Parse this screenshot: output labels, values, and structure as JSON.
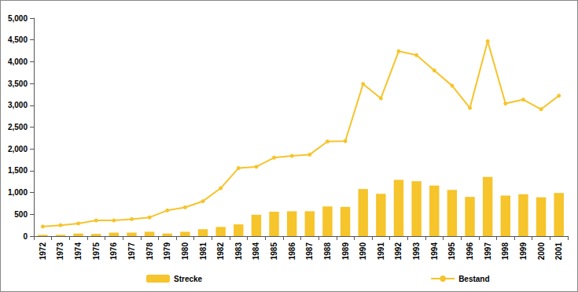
{
  "chart_data": {
    "type": "bar",
    "categories": [
      "1972",
      "1973",
      "1974",
      "1975",
      "1976",
      "1977",
      "1978",
      "1979",
      "1980",
      "1981",
      "1982",
      "1983",
      "1984",
      "1985",
      "1986",
      "1987",
      "1988",
      "1989",
      "1990",
      "1991",
      "1992",
      "1993",
      "1994",
      "1995",
      "1996",
      "1997",
      "1998",
      "1999",
      "2000",
      "2001"
    ],
    "series": [
      {
        "name": "Strecke",
        "type": "bar",
        "color": "#f6c42b",
        "values": [
          30,
          30,
          60,
          50,
          80,
          80,
          100,
          60,
          100,
          160,
          210,
          270,
          490,
          560,
          570,
          570,
          680,
          670,
          1080,
          970,
          1290,
          1260,
          1160,
          1060,
          900,
          1360,
          930,
          960,
          890,
          990
        ]
      },
      {
        "name": "Bestand",
        "type": "line",
        "color": "#f6c42b",
        "marker": "circle",
        "values": [
          220,
          250,
          290,
          360,
          360,
          390,
          430,
          590,
          660,
          800,
          1100,
          1560,
          1590,
          1800,
          1840,
          1870,
          2170,
          2180,
          3490,
          3160,
          4240,
          4150,
          3800,
          3450,
          2940,
          4470,
          3040,
          3130,
          2910,
          3220
        ]
      }
    ],
    "ylim": [
      0,
      5000
    ],
    "yticks": [
      0,
      500,
      1000,
      1500,
      2000,
      2500,
      3000,
      3500,
      4000,
      4500,
      5000
    ],
    "grid": false,
    "legend": "bottom"
  }
}
